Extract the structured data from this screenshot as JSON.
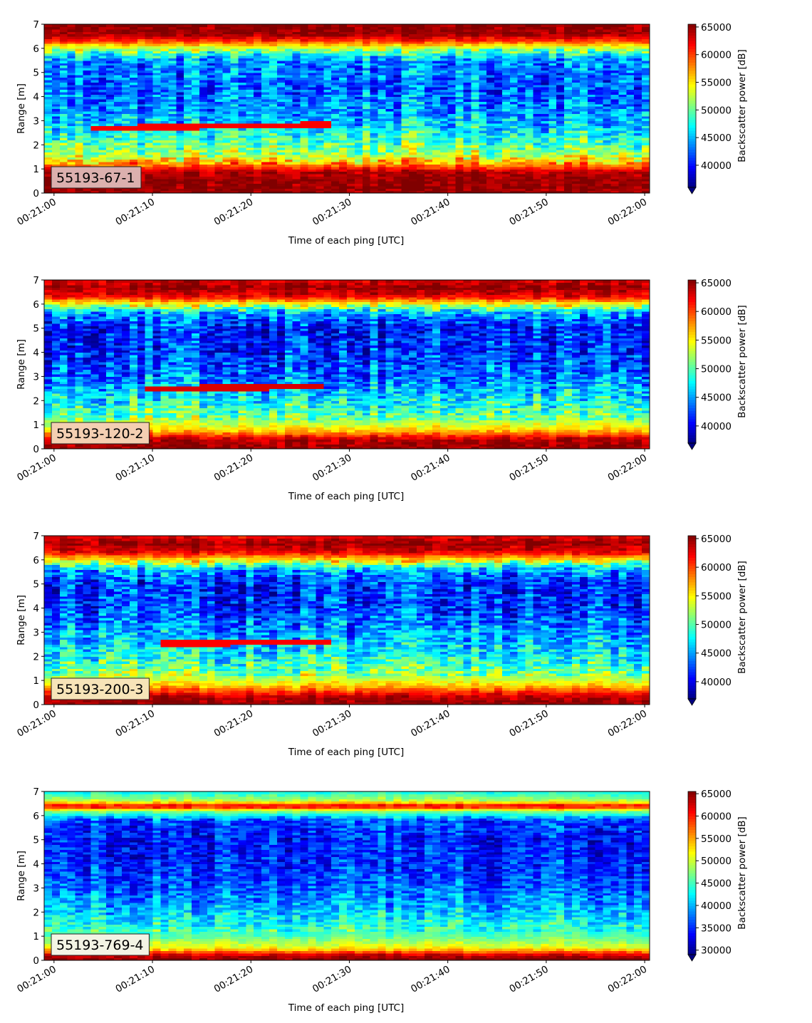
{
  "panels": [
    {
      "id": "p1",
      "label": "55193-67-1",
      "label_bg": "#dcb0ae",
      "cbar_ticks": [
        "40000",
        "45000",
        "50000",
        "55000",
        "60000",
        "65000"
      ],
      "cbar_label": "Backscatter power [dB]",
      "cbar_range": [
        36000,
        65500
      ]
    },
    {
      "id": "p2",
      "label": "55193-120-2",
      "label_bg": "#f4cfb2",
      "cbar_ticks": [
        "40000",
        "45000",
        "50000",
        "55000",
        "60000",
        "65000"
      ],
      "cbar_label": "Backscatter power [dB]",
      "cbar_range": [
        37000,
        65500
      ]
    },
    {
      "id": "p3",
      "label": "55193-200-3",
      "label_bg": "#f7e4b8",
      "cbar_ticks": [
        "40000",
        "45000",
        "50000",
        "55000",
        "60000",
        "65000"
      ],
      "cbar_label": "Backscatter power [dB]",
      "cbar_range": [
        37000,
        65500
      ]
    },
    {
      "id": "p4",
      "label": "55193-769-4",
      "label_bg": "#f3f4e4",
      "cbar_ticks": [
        "30000",
        "35000",
        "40000",
        "45000",
        "50000",
        "55000",
        "60000",
        "65000"
      ],
      "cbar_label": "Backscatter power [dB]",
      "cbar_range": [
        29000,
        65500
      ]
    }
  ],
  "shared": {
    "xlabel": "Time of each ping [UTC]",
    "ylabel": "Range [m]",
    "xticks": [
      "00:21:00",
      "00:21:10",
      "00:21:20",
      "00:21:30",
      "00:21:40",
      "00:21:50",
      "00:22:00"
    ],
    "yticks": [
      "0",
      "1",
      "2",
      "3",
      "4",
      "5",
      "6",
      "7"
    ]
  },
  "chart_data": [
    {
      "type": "heatmap",
      "title": "55193-67-1",
      "xlabel": "Time of each ping [UTC]",
      "ylabel": "Range [m]",
      "colorbar_label": "Backscatter power [dB]",
      "colormap": "jet",
      "xlim": [
        "00:20:59",
        "00:22:00"
      ],
      "ylim": [
        0,
        7
      ],
      "color_range": [
        36000,
        65500
      ],
      "profile": [
        {
          "range": 0.1,
          "power": 65000
        },
        {
          "range": 0.5,
          "power": 65000
        },
        {
          "range": 0.9,
          "power": 64000
        },
        {
          "range": 1.2,
          "power": 58000
        },
        {
          "range": 1.6,
          "power": 52000
        },
        {
          "range": 2.2,
          "power": 49000
        },
        {
          "range": 2.8,
          "power": 46000
        },
        {
          "range": 3.5,
          "power": 44000
        },
        {
          "range": 4.5,
          "power": 42500
        },
        {
          "range": 5.5,
          "power": 44000
        },
        {
          "range": 6.0,
          "power": 52000
        },
        {
          "range": 6.3,
          "power": 60000
        },
        {
          "range": 6.6,
          "power": 65000
        },
        {
          "range": 7.0,
          "power": 65000
        }
      ],
      "features": [
        {
          "name": "scatterer track",
          "t_start": 3.5,
          "t_end": 28,
          "range_start": 2.7,
          "range_end": 2.85,
          "power": 62000
        }
      ]
    },
    {
      "type": "heatmap",
      "title": "55193-120-2",
      "xlabel": "Time of each ping [UTC]",
      "ylabel": "Range [m]",
      "colorbar_label": "Backscatter power [dB]",
      "colormap": "jet",
      "xlim": [
        "00:20:59",
        "00:22:00"
      ],
      "ylim": [
        0,
        7
      ],
      "color_range": [
        37000,
        65500
      ],
      "profile": [
        {
          "range": 0.1,
          "power": 65000
        },
        {
          "range": 0.4,
          "power": 64000
        },
        {
          "range": 0.8,
          "power": 56000
        },
        {
          "range": 1.3,
          "power": 51000
        },
        {
          "range": 2.0,
          "power": 48000
        },
        {
          "range": 3.0,
          "power": 44000
        },
        {
          "range": 4.0,
          "power": 42000
        },
        {
          "range": 5.0,
          "power": 41500
        },
        {
          "range": 5.6,
          "power": 45000
        },
        {
          "range": 6.0,
          "power": 54000
        },
        {
          "range": 6.3,
          "power": 62000
        },
        {
          "range": 6.7,
          "power": 65000
        },
        {
          "range": 7.0,
          "power": 63000
        }
      ],
      "features": [
        {
          "name": "scatterer track",
          "t_start": 9,
          "t_end": 27,
          "range_start": 2.5,
          "range_end": 2.6,
          "power": 63000
        }
      ]
    },
    {
      "type": "heatmap",
      "title": "55193-200-3",
      "xlabel": "Time of each ping [UTC]",
      "ylabel": "Range [m]",
      "colorbar_label": "Backscatter power [dB]",
      "colormap": "jet",
      "xlim": [
        "00:20:59",
        "00:22:00"
      ],
      "ylim": [
        0,
        7
      ],
      "color_range": [
        37000,
        65500
      ],
      "profile": [
        {
          "range": 0.1,
          "power": 65000
        },
        {
          "range": 0.4,
          "power": 63000
        },
        {
          "range": 0.8,
          "power": 56000
        },
        {
          "range": 1.3,
          "power": 51000
        },
        {
          "range": 2.0,
          "power": 48000
        },
        {
          "range": 3.0,
          "power": 45000
        },
        {
          "range": 4.0,
          "power": 42000
        },
        {
          "range": 5.0,
          "power": 41500
        },
        {
          "range": 5.6,
          "power": 45000
        },
        {
          "range": 6.0,
          "power": 55000
        },
        {
          "range": 6.3,
          "power": 62000
        },
        {
          "range": 6.7,
          "power": 65000
        },
        {
          "range": 7.0,
          "power": 62000
        }
      ],
      "features": [
        {
          "name": "scatterer track",
          "t_start": 11,
          "t_end": 28,
          "range_start": 2.55,
          "range_end": 2.6,
          "power": 62000
        }
      ]
    },
    {
      "type": "heatmap",
      "title": "55193-769-4",
      "xlabel": "Time of each ping [UTC]",
      "ylabel": "Range [m]",
      "colorbar_label": "Backscatter power [dB]",
      "colormap": "jet",
      "xlim": [
        "00:20:59",
        "00:22:00"
      ],
      "ylim": [
        0,
        7
      ],
      "color_range": [
        29000,
        65500
      ],
      "profile": [
        {
          "range": 0.1,
          "power": 65000
        },
        {
          "range": 0.25,
          "power": 62000
        },
        {
          "range": 0.5,
          "power": 52000
        },
        {
          "range": 1.0,
          "power": 46000
        },
        {
          "range": 2.0,
          "power": 41000
        },
        {
          "range": 3.0,
          "power": 37000
        },
        {
          "range": 4.0,
          "power": 35000
        },
        {
          "range": 5.0,
          "power": 34500
        },
        {
          "range": 5.8,
          "power": 36000
        },
        {
          "range": 6.2,
          "power": 48000
        },
        {
          "range": 6.4,
          "power": 63000
        },
        {
          "range": 6.6,
          "power": 50000
        },
        {
          "range": 7.0,
          "power": 43000
        }
      ],
      "features": []
    }
  ]
}
